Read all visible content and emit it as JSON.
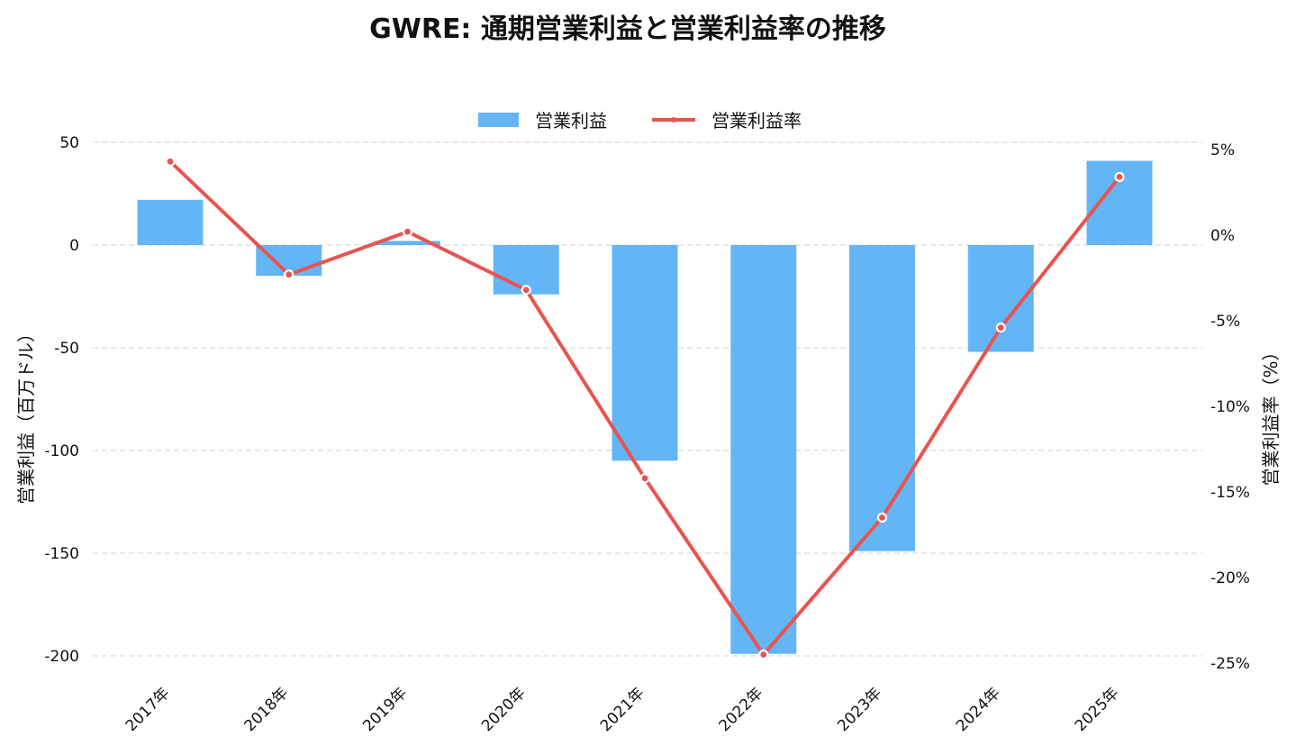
{
  "chart_data": {
    "type": "bar",
    "title": "GWRE: 通期営業利益と営業利益率の推移",
    "categories": [
      "2017年",
      "2018年",
      "2019年",
      "2020年",
      "2021年",
      "2022年",
      "2023年",
      "2024年",
      "2025年"
    ],
    "series": [
      {
        "name": "営業利益",
        "type": "bar",
        "axis": "left",
        "values": [
          22,
          -15,
          2,
          -24,
          -105,
          -199,
          -149,
          -52,
          41
        ]
      },
      {
        "name": "営業利益率",
        "type": "line",
        "axis": "right",
        "values": [
          4.3,
          -2.3,
          0.2,
          -3.2,
          -14.2,
          -24.5,
          -16.5,
          -5.4,
          3.4
        ]
      }
    ],
    "ylabel": "営業利益（百万ドル）",
    "ylabel_right": "営業利益率（%）",
    "ylim": [
      -200,
      50
    ],
    "yticks": [
      50,
      0,
      -50,
      -100,
      -150,
      -200
    ],
    "ytick_labels": [
      "50",
      "0",
      "-50",
      "-100",
      "-150",
      "-200"
    ],
    "ylim_right": [
      -25,
      5
    ],
    "yticks_right": [
      5,
      0,
      -5,
      -10,
      -15,
      -20,
      -25
    ],
    "ytick_labels_right": [
      "5%",
      "0%",
      "-5%",
      "-10%",
      "-15%",
      "-20%",
      "-25%"
    ],
    "grid": true,
    "legend_position": "top-center",
    "colors": {
      "bar": "#64b5f6",
      "line": "#e85450"
    }
  }
}
